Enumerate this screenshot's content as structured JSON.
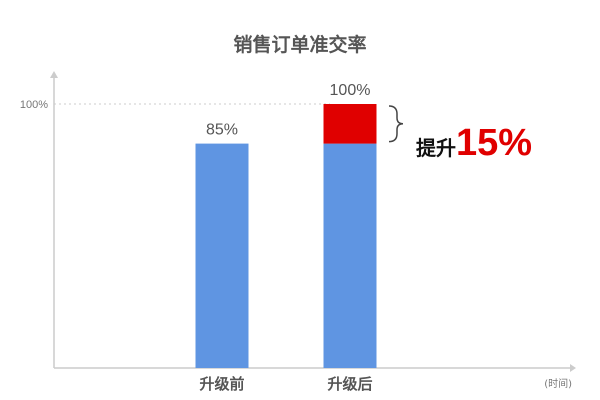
{
  "chart_data": {
    "type": "bar",
    "title": "销售订单准交率",
    "xlabel": "(时间)",
    "ylabel": "",
    "ylim": [
      0,
      100
    ],
    "yticks": [
      "100%"
    ],
    "categories": [
      "升级前",
      "升级后"
    ],
    "series": [
      {
        "values": [
          85,
          85
        ],
        "color": "#5f95e2"
      },
      {
        "values": [
          0,
          15
        ],
        "color": "#e00000"
      }
    ],
    "data_labels": [
      "85%",
      "100%"
    ],
    "annotation": {
      "label": "提升",
      "value": "15%"
    },
    "grid": false
  }
}
